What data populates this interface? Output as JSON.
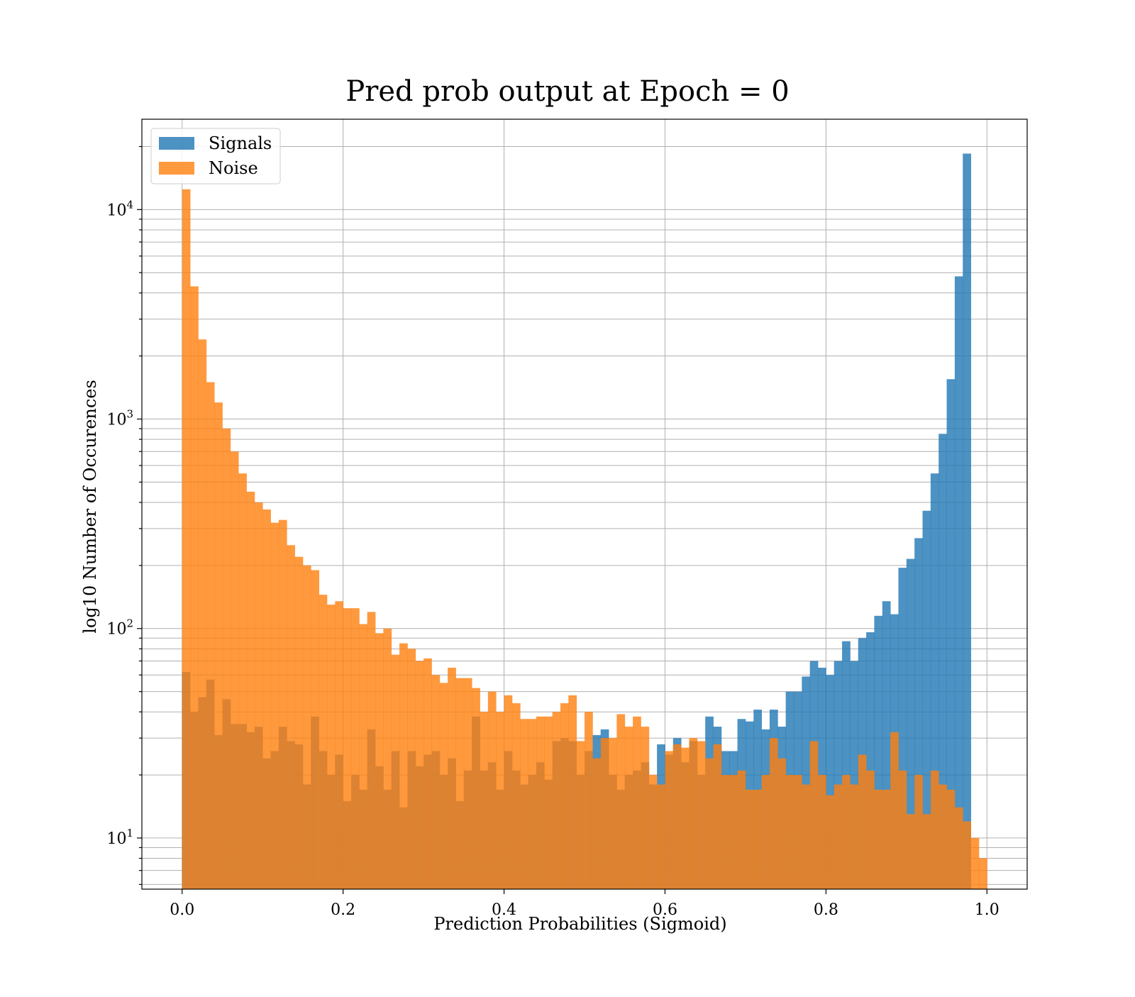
{
  "chart_data": {
    "type": "bar",
    "title": "Pred prob output at Epoch = 0",
    "xlabel": "Prediction Probabilities (Sigmoid)",
    "ylabel": "log10 Number of Occurences",
    "xlim": [
      -0.05,
      1.05
    ],
    "ylim": [
      5.7,
      27000
    ],
    "yscale": "log",
    "grid": true,
    "legend_position": "upper-left",
    "bins": 100,
    "bin_range": [
      0.0,
      1.0
    ],
    "x_ticks": [
      0.0,
      0.2,
      0.4,
      0.6,
      0.8,
      1.0
    ],
    "x_tick_labels": [
      "0.0",
      "0.2",
      "0.4",
      "0.6",
      "0.8",
      "1.0"
    ],
    "y_ticks": [
      10,
      100,
      1000,
      10000
    ],
    "y_tick_labels": [
      {
        "base": "10",
        "exp": "1"
      },
      {
        "base": "10",
        "exp": "2"
      },
      {
        "base": "10",
        "exp": "3"
      },
      {
        "base": "10",
        "exp": "4"
      }
    ],
    "series": [
      {
        "name": "Signals",
        "color": "#1f77b4",
        "alpha": 0.8,
        "values": [
          62,
          40,
          47,
          57,
          31,
          46,
          35,
          35,
          32,
          34,
          24,
          26,
          34,
          29,
          28,
          18,
          38,
          26,
          20,
          25,
          15,
          20,
          17,
          33,
          22,
          17,
          26,
          14,
          26,
          22,
          25,
          26,
          20,
          24,
          15,
          21,
          38,
          21,
          23,
          17,
          26,
          21,
          18,
          20,
          23,
          19,
          29,
          30,
          29,
          20,
          26,
          31,
          33,
          20,
          17,
          20,
          21,
          23,
          18,
          28,
          25,
          30,
          23,
          29,
          20,
          38,
          34,
          26,
          26,
          37,
          36,
          41,
          33,
          41,
          34,
          50,
          50,
          59,
          70,
          65,
          60,
          70,
          87,
          70,
          90,
          96,
          115,
          135,
          117,
          195,
          215,
          270,
          365,
          550,
          850,
          1550,
          4800,
          18500,
          0,
          0
        ]
      },
      {
        "name": "Noise",
        "color": "#ff7f0e",
        "alpha": 0.8,
        "values": [
          12500,
          4300,
          2400,
          1500,
          1200,
          900,
          700,
          550,
          450,
          400,
          370,
          320,
          330,
          250,
          220,
          200,
          190,
          145,
          130,
          135,
          125,
          125,
          105,
          120,
          95,
          100,
          75,
          85,
          80,
          70,
          72,
          60,
          55,
          65,
          58,
          58,
          52,
          40,
          50,
          40,
          48,
          44,
          37,
          37,
          38,
          38,
          40,
          44,
          48,
          29,
          40,
          24,
          30,
          30,
          39,
          34,
          38,
          34,
          20,
          18,
          26,
          28,
          27,
          30,
          29,
          24,
          28,
          20,
          20,
          21,
          17,
          17,
          20,
          30,
          24,
          20,
          20,
          18,
          29,
          20,
          16,
          18,
          20,
          18,
          25,
          21,
          17,
          17,
          32,
          21,
          13,
          20,
          13,
          21,
          18,
          17,
          14,
          12,
          10,
          8
        ]
      }
    ]
  }
}
